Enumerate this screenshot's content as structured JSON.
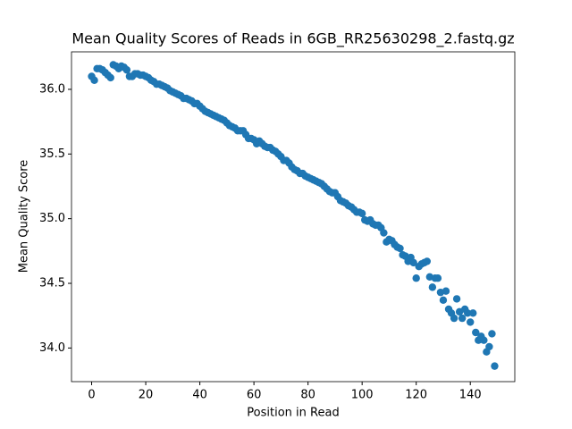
{
  "chart_data": {
    "type": "scatter",
    "title": "Mean Quality Scores of Reads in 6GB_RR25630298_2.fastq.gz",
    "x_label": "Position in Read",
    "y_label": "Mean Quality Score",
    "color": "#1f77b4",
    "x": [
      0,
      1,
      2,
      3,
      4,
      5,
      6,
      7,
      8,
      9,
      10,
      11,
      12,
      13,
      14,
      15,
      16,
      17,
      18,
      19,
      20,
      21,
      22,
      23,
      24,
      25,
      26,
      27,
      28,
      29,
      30,
      31,
      32,
      33,
      34,
      35,
      36,
      37,
      38,
      39,
      40,
      41,
      42,
      43,
      44,
      45,
      46,
      47,
      48,
      49,
      50,
      51,
      52,
      53,
      54,
      55,
      56,
      57,
      58,
      59,
      60,
      61,
      62,
      63,
      64,
      65,
      66,
      67,
      68,
      69,
      70,
      71,
      72,
      73,
      74,
      75,
      76,
      77,
      78,
      79,
      80,
      81,
      82,
      83,
      84,
      85,
      86,
      87,
      88,
      89,
      90,
      91,
      92,
      93,
      94,
      95,
      96,
      97,
      98,
      99,
      100,
      101,
      102,
      103,
      104,
      105,
      106,
      107,
      108,
      109,
      110,
      111,
      112,
      113,
      114,
      115,
      116,
      117,
      118,
      119,
      120,
      121,
      122,
      123,
      124,
      125,
      126,
      127,
      128,
      129,
      130,
      131,
      132,
      133,
      134,
      135,
      136,
      137,
      138,
      139,
      140,
      141,
      142,
      143,
      144,
      145,
      146,
      147,
      148,
      149
    ],
    "values": [
      36.1,
      36.07,
      36.16,
      36.16,
      36.15,
      36.13,
      36.11,
      36.09,
      36.19,
      36.18,
      36.16,
      36.18,
      36.17,
      36.15,
      36.1,
      36.1,
      36.12,
      36.12,
      36.11,
      36.11,
      36.1,
      36.09,
      36.07,
      36.06,
      36.04,
      36.04,
      36.03,
      36.02,
      36.01,
      35.99,
      35.98,
      35.97,
      35.96,
      35.95,
      35.93,
      35.93,
      35.92,
      35.91,
      35.89,
      35.89,
      35.87,
      35.85,
      35.83,
      35.82,
      35.81,
      35.8,
      35.79,
      35.78,
      35.77,
      35.76,
      35.74,
      35.72,
      35.71,
      35.7,
      35.68,
      35.68,
      35.68,
      35.65,
      35.62,
      35.62,
      35.61,
      35.58,
      35.6,
      35.58,
      35.56,
      35.55,
      35.55,
      35.53,
      35.52,
      35.5,
      35.48,
      35.45,
      35.45,
      35.43,
      35.4,
      35.38,
      35.37,
      35.35,
      35.35,
      35.33,
      35.32,
      35.31,
      35.3,
      35.29,
      35.28,
      35.27,
      35.25,
      35.23,
      35.21,
      35.2,
      35.2,
      35.17,
      35.14,
      35.13,
      35.12,
      35.1,
      35.09,
      35.07,
      35.05,
      35.05,
      35.04,
      34.99,
      34.98,
      34.99,
      34.96,
      34.95,
      34.95,
      34.93,
      34.89,
      34.82,
      34.84,
      34.83,
      34.8,
      34.78,
      34.77,
      34.72,
      34.71,
      34.67,
      34.7,
      34.66,
      34.54,
      34.63,
      34.65,
      34.66,
      34.67,
      34.55,
      34.47,
      34.54,
      34.54,
      34.43,
      34.37,
      34.44,
      34.3,
      34.27,
      34.23,
      34.38,
      34.28,
      34.23,
      34.3,
      34.27,
      34.2,
      34.27,
      34.12,
      34.06,
      34.09,
      34.06,
      33.97,
      34.01,
      34.11,
      33.86
    ],
    "xlim": [
      -7.45,
      156.45
    ],
    "xticks": [
      0,
      20,
      40,
      60,
      80,
      100,
      120,
      140
    ],
    "ylim": [
      33.74,
      36.29
    ],
    "yticks": [
      {
        "value": 34,
        "label": "34.0"
      },
      34.5,
      {
        "value": 35,
        "label": "35.0"
      },
      35.5,
      {
        "value": 36,
        "label": "36.0"
      }
    ]
  }
}
